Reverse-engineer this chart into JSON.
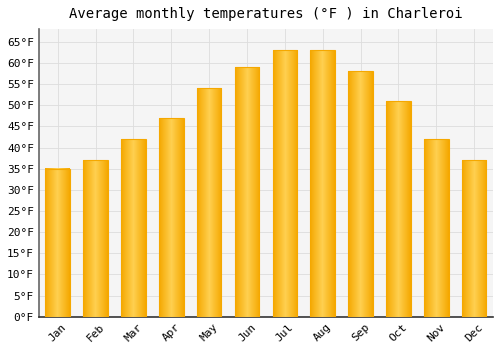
{
  "title": "Average monthly temperatures (°F ) in Charleroi",
  "months": [
    "Jan",
    "Feb",
    "Mar",
    "Apr",
    "May",
    "Jun",
    "Jul",
    "Aug",
    "Sep",
    "Oct",
    "Nov",
    "Dec"
  ],
  "values": [
    35,
    37,
    42,
    47,
    54,
    59,
    63,
    63,
    58,
    51,
    42,
    37
  ],
  "bar_color_center": "#FFD050",
  "bar_color_edge": "#F5A800",
  "background_color": "#FFFFFF",
  "plot_bg_color": "#F5F5F5",
  "grid_color": "#DDDDDD",
  "ylim": [
    0,
    68
  ],
  "ytick_step": 5,
  "title_fontsize": 10,
  "tick_fontsize": 8,
  "tick_font_family": "monospace"
}
